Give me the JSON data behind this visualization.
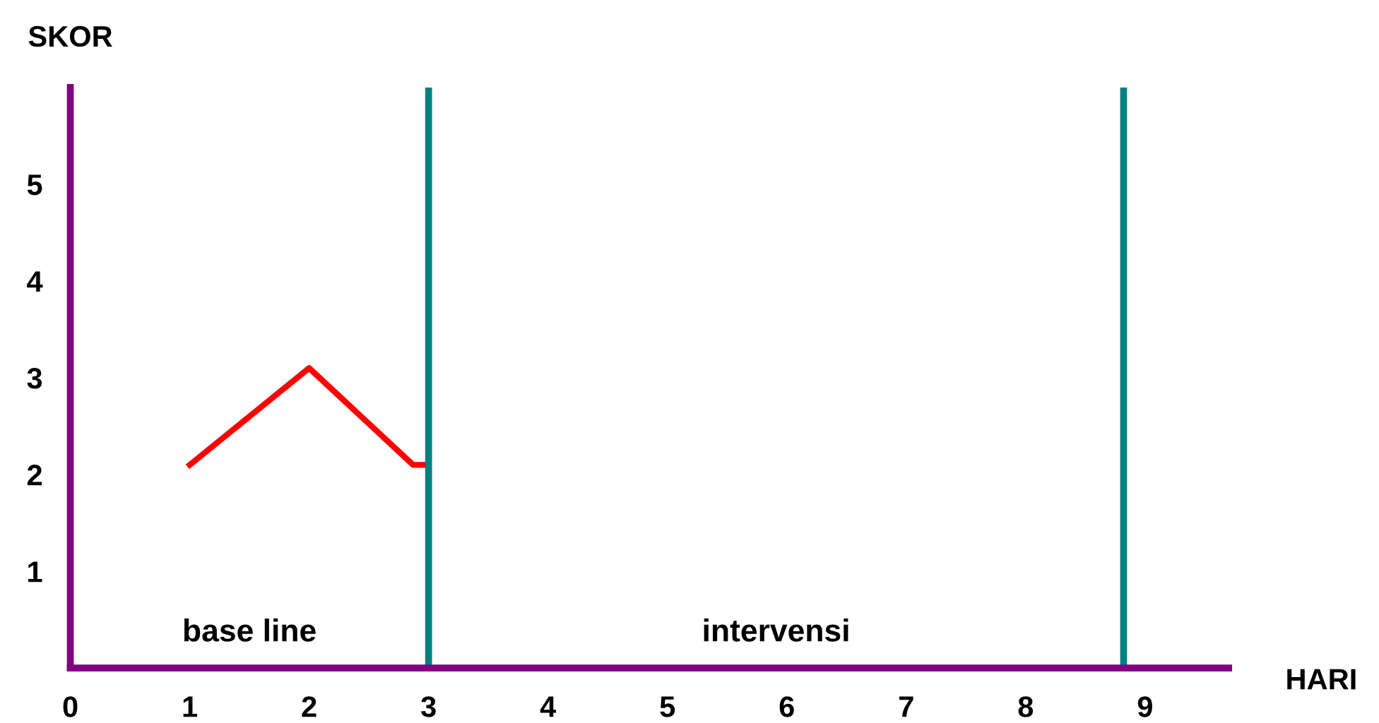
{
  "chart_data": {
    "type": "line",
    "xlabel": "HARI",
    "ylabel": "SKOR",
    "series": [
      {
        "color": "#ff0000",
        "x": [
          1,
          2,
          2.87,
          3
        ],
        "values": [
          2.1,
          3.1,
          2.1,
          2.1
        ]
      }
    ],
    "xlim": [
      0,
      9.7
    ],
    "ylim": [
      0,
      6
    ],
    "xticks": [
      0,
      1,
      2,
      3,
      4,
      5,
      6,
      7,
      8,
      9
    ],
    "yticks": [
      1,
      2,
      3,
      4,
      5
    ],
    "ref_lines": [
      {
        "axis": "x",
        "value": 3,
        "color": "#008080"
      },
      {
        "axis": "x",
        "value": 8.82,
        "color": "#008080"
      }
    ],
    "annotations": [
      "base line",
      "intervensi"
    ],
    "grid": false,
    "legend": false,
    "marker": "none",
    "line_style": "solid"
  }
}
